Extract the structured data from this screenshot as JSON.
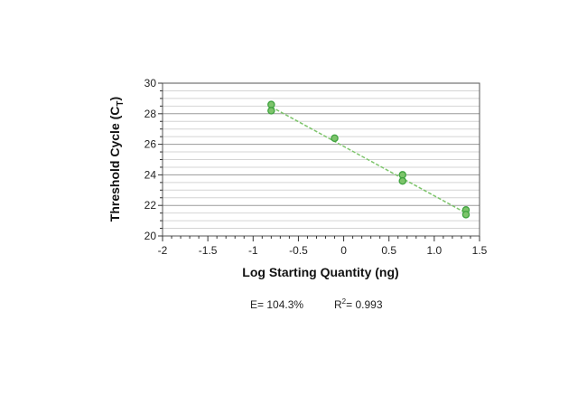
{
  "chart_data": {
    "type": "scatter",
    "title": "",
    "xlabel": "Log Starting Quantity (ng)",
    "ylabel_main": "Threshold Cycle (C",
    "ylabel_sub": "T",
    "ylabel_close": ")",
    "xlim": [
      -2,
      1.5
    ],
    "ylim": [
      20,
      30
    ],
    "x_ticks": [
      -2,
      -1.5,
      -1,
      -0.5,
      0,
      0.5,
      1,
      1.5
    ],
    "x_tick_labels": [
      "-2",
      "-1.5",
      "-1",
      "-0.5",
      "0",
      "0.5",
      "1.0",
      "1.5"
    ],
    "y_ticks": [
      20,
      22,
      24,
      26,
      28,
      30
    ],
    "y_tick_labels": [
      "20",
      "22",
      "24",
      "26",
      "28",
      "30"
    ],
    "grid": true,
    "series": [
      {
        "points": [
          {
            "x": -0.8,
            "y": 28.6
          },
          {
            "x": -0.8,
            "y": 28.2
          },
          {
            "x": -0.1,
            "y": 26.4
          },
          {
            "x": 0.65,
            "y": 24.0
          },
          {
            "x": 0.65,
            "y": 23.6
          },
          {
            "x": 1.35,
            "y": 21.7
          },
          {
            "x": 1.35,
            "y": 21.4
          }
        ],
        "marker_color": "#3fa33f",
        "marker_fill": "#7dc46b"
      }
    ],
    "trendline": {
      "x": [
        -0.8,
        1.35
      ],
      "y": [
        28.45,
        21.5
      ],
      "color": "#7dc46b",
      "style": "dashed"
    },
    "annotations": {
      "efficiency": "E= 104.3%",
      "r2_prefix": "R",
      "r2_sup": "2",
      "r2_value": "= 0.993"
    }
  }
}
